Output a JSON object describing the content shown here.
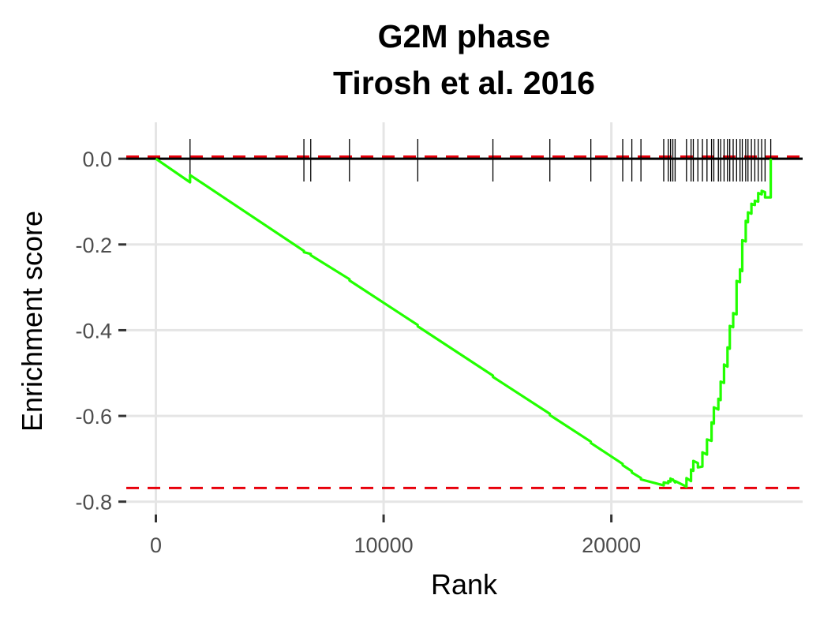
{
  "chart_data": {
    "type": "line",
    "title": [
      "G2M phase",
      "Tirosh et al. 2016"
    ],
    "xlabel": "Rank",
    "ylabel": "Enrichment score",
    "xlim": [
      -1300,
      28400
    ],
    "ylim": [
      -0.83,
      0.085
    ],
    "grid": true,
    "legend": "none",
    "x_ticks": [
      0,
      10000,
      20000
    ],
    "x_tick_labels": [
      "0",
      "10000",
      "20000"
    ],
    "y_ticks": [
      0.0,
      -0.2,
      -0.4,
      -0.6,
      -0.8
    ],
    "y_tick_labels": [
      "0.0",
      "-0.2",
      "-0.4",
      "-0.6",
      "-0.8"
    ],
    "reference_lines": [
      {
        "y": 0.005,
        "style": "dashed",
        "color": "#e8000b"
      },
      {
        "y": -0.768,
        "style": "dashed",
        "color": "#e8000b"
      },
      {
        "y": 0.0,
        "style": "solid",
        "color": "#000000"
      }
    ],
    "series": [
      {
        "color": "#22ff00",
        "x": [
          0,
          1500,
          1500,
          6500,
          6500,
          6800,
          6800,
          8500,
          8500,
          11500,
          11500,
          14800,
          14800,
          17300,
          17300,
          19100,
          19100,
          20500,
          20500,
          20900,
          20900,
          21300,
          21300,
          22300,
          22300,
          22500,
          22500,
          22600,
          22600,
          22700,
          22700,
          22800,
          22800,
          23300,
          23300,
          23500,
          23500,
          23600,
          23600,
          23800,
          23800,
          24000,
          24000,
          24200,
          24200,
          24400,
          24400,
          24500,
          24500,
          24700,
          24700,
          24800,
          24800,
          24950,
          24950,
          25100,
          25100,
          25200,
          25200,
          25350,
          25350,
          25500,
          25500,
          25650,
          25650,
          25750,
          25750,
          25900,
          25900,
          26000,
          26000,
          26150,
          26150,
          26300,
          26300,
          26450,
          26450,
          26600,
          26600,
          26750,
          26750,
          27000,
          27000
        ],
        "y": [
          0.0,
          -0.055,
          -0.038,
          -0.215,
          -0.218,
          -0.222,
          -0.225,
          -0.281,
          -0.284,
          -0.388,
          -0.391,
          -0.506,
          -0.509,
          -0.595,
          -0.598,
          -0.66,
          -0.663,
          -0.712,
          -0.715,
          -0.729,
          -0.732,
          -0.745,
          -0.748,
          -0.762,
          -0.755,
          -0.757,
          -0.752,
          -0.753,
          -0.746,
          -0.75,
          -0.748,
          -0.755,
          -0.752,
          -0.765,
          -0.745,
          -0.752,
          -0.725,
          -0.728,
          -0.705,
          -0.71,
          -0.72,
          -0.718,
          -0.685,
          -0.69,
          -0.655,
          -0.658,
          -0.615,
          -0.618,
          -0.58,
          -0.585,
          -0.56,
          -0.563,
          -0.52,
          -0.523,
          -0.48,
          -0.485,
          -0.44,
          -0.443,
          -0.39,
          -0.393,
          -0.36,
          -0.363,
          -0.285,
          -0.288,
          -0.258,
          -0.262,
          -0.19,
          -0.193,
          -0.145,
          -0.148,
          -0.125,
          -0.128,
          -0.105,
          -0.108,
          -0.098,
          -0.1,
          -0.08,
          -0.083,
          -0.075,
          -0.078,
          -0.09,
          -0.09,
          0.0
        ]
      }
    ],
    "gene_rug_positions": [
      1500,
      6500,
      6800,
      8500,
      11500,
      14800,
      17300,
      19100,
      20500,
      20900,
      21300,
      22300,
      22500,
      22600,
      22700,
      22800,
      23300,
      23500,
      23600,
      23800,
      24000,
      24200,
      24400,
      24500,
      24700,
      24800,
      24950,
      25100,
      25200,
      25350,
      25500,
      25650,
      25750,
      25900,
      26000,
      26150,
      26300,
      26450,
      26600,
      26750,
      27000
    ]
  }
}
